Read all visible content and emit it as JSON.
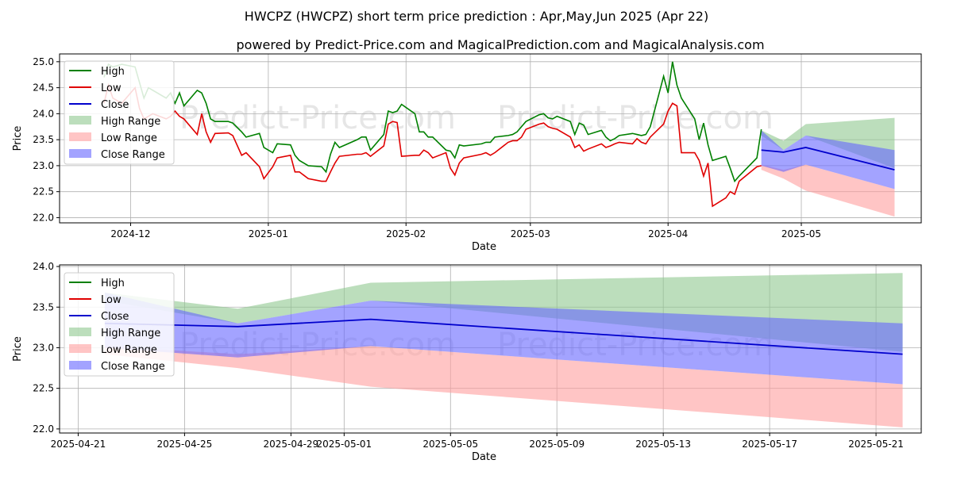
{
  "title": "HWCPZ (HWCPZ) short term price prediction : Apr,May,Jun 2025 (Apr 22)",
  "subtitle": "powered by Predict-Price.com and MagicalPrediction.com and MagicalAnalysis.com",
  "watermark": "Predict-Price.com",
  "colors": {
    "high": "#008000",
    "low": "#e00000",
    "close": "#0000cc",
    "high_range": "#90c890",
    "low_range": "#ff9e9e",
    "close_range": "#6666ff",
    "grid": "#b0b0b0",
    "watermark": "#e6e6e6"
  },
  "legend": {
    "high": "High",
    "low": "Low",
    "close": "Close",
    "high_range": "High Range",
    "low_range": "Low Range",
    "close_range": "Close Range"
  },
  "chart_data": [
    {
      "type": "line",
      "title": "",
      "xlabel": "Date",
      "ylabel": "Price",
      "ylim": [
        21.9,
        25.15
      ],
      "xlim": [
        "2025-11-15",
        "2025-05-28"
      ],
      "x_ticks": [
        "2024-12",
        "2025-01",
        "2025-02",
        "2025-03",
        "2025-04",
        "2025-05"
      ],
      "y_ticks": [
        "22.0",
        "22.5",
        "23.0",
        "23.5",
        "24.0",
        "24.5",
        "25.0"
      ],
      "grid": true,
      "legend_position": "top-left",
      "history": [
        {
          "date": "2024-11-25",
          "high": 24.7,
          "low": 24.2
        },
        {
          "date": "2024-11-26",
          "high": 24.95,
          "low": 24.55
        },
        {
          "date": "2024-11-27",
          "high": 24.9,
          "low": 24.3
        },
        {
          "date": "2024-11-29",
          "high": 24.95,
          "low": 24.2
        },
        {
          "date": "2024-12-02",
          "high": 24.9,
          "low": 24.5
        },
        {
          "date": "2024-12-03",
          "high": 24.6,
          "low": 24.1
        },
        {
          "date": "2024-12-04",
          "high": 24.3,
          "low": 23.9
        },
        {
          "date": "2024-12-05",
          "high": 24.5,
          "low": 23.95
        },
        {
          "date": "2024-12-06",
          "high": 24.45,
          "low": 24.0
        },
        {
          "date": "2024-12-09",
          "high": 24.3,
          "low": 23.9
        },
        {
          "date": "2024-12-10",
          "high": 24.4,
          "low": 23.95
        },
        {
          "date": "2024-12-11",
          "high": 24.2,
          "low": 24.05
        },
        {
          "date": "2024-12-12",
          "high": 24.4,
          "low": 23.95
        },
        {
          "date": "2024-12-13",
          "high": 24.15,
          "low": 23.9
        },
        {
          "date": "2024-12-16",
          "high": 24.45,
          "low": 23.6
        },
        {
          "date": "2024-12-17",
          "high": 24.4,
          "low": 24.0
        },
        {
          "date": "2024-12-18",
          "high": 24.2,
          "low": 23.65
        },
        {
          "date": "2024-12-19",
          "high": 23.9,
          "low": 23.45
        },
        {
          "date": "2024-12-20",
          "high": 23.85,
          "low": 23.62
        },
        {
          "date": "2024-12-23",
          "high": 23.85,
          "low": 23.63
        },
        {
          "date": "2024-12-24",
          "high": 23.82,
          "low": 23.58
        },
        {
          "date": "2024-12-26",
          "high": 23.65,
          "low": 23.2
        },
        {
          "date": "2024-12-27",
          "high": 23.55,
          "low": 23.25
        },
        {
          "date": "2024-12-30",
          "high": 23.62,
          "low": 22.98
        },
        {
          "date": "2024-12-31",
          "high": 23.35,
          "low": 22.75
        },
        {
          "date": "2025-01-02",
          "high": 23.25,
          "low": 22.98
        },
        {
          "date": "2025-01-03",
          "high": 23.42,
          "low": 23.15
        },
        {
          "date": "2025-01-06",
          "high": 23.4,
          "low": 23.2
        },
        {
          "date": "2025-01-07",
          "high": 23.2,
          "low": 22.88
        },
        {
          "date": "2025-01-08",
          "high": 23.1,
          "low": 22.88
        },
        {
          "date": "2025-01-10",
          "high": 23.0,
          "low": 22.75
        },
        {
          "date": "2025-01-13",
          "high": 22.98,
          "low": 22.7
        },
        {
          "date": "2025-01-14",
          "high": 22.88,
          "low": 22.7
        },
        {
          "date": "2025-01-15",
          "high": 23.22,
          "low": 22.88
        },
        {
          "date": "2025-01-16",
          "high": 23.45,
          "low": 23.05
        },
        {
          "date": "2025-01-17",
          "high": 23.35,
          "low": 23.18
        },
        {
          "date": "2025-01-21",
          "high": 23.5,
          "low": 23.22
        },
        {
          "date": "2025-01-22",
          "high": 23.55,
          "low": 23.22
        },
        {
          "date": "2025-01-23",
          "high": 23.55,
          "low": 23.25
        },
        {
          "date": "2025-01-24",
          "high": 23.3,
          "low": 23.18
        },
        {
          "date": "2025-01-27",
          "high": 23.6,
          "low": 23.38
        },
        {
          "date": "2025-01-28",
          "high": 24.05,
          "low": 23.8
        },
        {
          "date": "2025-01-29",
          "high": 24.02,
          "low": 23.85
        },
        {
          "date": "2025-01-30",
          "high": 24.05,
          "low": 23.83
        },
        {
          "date": "2025-01-31",
          "high": 24.18,
          "low": 23.18
        },
        {
          "date": "2025-02-03",
          "high": 24.0,
          "low": 23.2
        },
        {
          "date": "2025-02-04",
          "high": 23.65,
          "low": 23.2
        },
        {
          "date": "2025-02-05",
          "high": 23.65,
          "low": 23.3
        },
        {
          "date": "2025-02-06",
          "high": 23.55,
          "low": 23.25
        },
        {
          "date": "2025-02-07",
          "high": 23.55,
          "low": 23.15
        },
        {
          "date": "2025-02-10",
          "high": 23.3,
          "low": 23.25
        },
        {
          "date": "2025-02-11",
          "high": 23.28,
          "low": 22.95
        },
        {
          "date": "2025-02-12",
          "high": 23.15,
          "low": 22.82
        },
        {
          "date": "2025-02-13",
          "high": 23.4,
          "low": 23.05
        },
        {
          "date": "2025-02-14",
          "high": 23.38,
          "low": 23.15
        },
        {
          "date": "2025-02-18",
          "high": 23.42,
          "low": 23.22
        },
        {
          "date": "2025-02-19",
          "high": 23.45,
          "low": 23.25
        },
        {
          "date": "2025-02-20",
          "high": 23.45,
          "low": 23.2
        },
        {
          "date": "2025-02-21",
          "high": 23.55,
          "low": 23.25
        },
        {
          "date": "2025-02-24",
          "high": 23.58,
          "low": 23.45
        },
        {
          "date": "2025-02-25",
          "high": 23.6,
          "low": 23.48
        },
        {
          "date": "2025-02-26",
          "high": 23.65,
          "low": 23.48
        },
        {
          "date": "2025-02-27",
          "high": 23.75,
          "low": 23.55
        },
        {
          "date": "2025-02-28",
          "high": 23.85,
          "low": 23.7
        },
        {
          "date": "2025-03-03",
          "high": 23.98,
          "low": 23.8
        },
        {
          "date": "2025-03-04",
          "high": 24.0,
          "low": 23.82
        },
        {
          "date": "2025-03-05",
          "high": 23.92,
          "low": 23.75
        },
        {
          "date": "2025-03-06",
          "high": 23.9,
          "low": 23.72
        },
        {
          "date": "2025-03-07",
          "high": 23.95,
          "low": 23.7
        },
        {
          "date": "2025-03-10",
          "high": 23.85,
          "low": 23.55
        },
        {
          "date": "2025-03-11",
          "high": 23.6,
          "low": 23.35
        },
        {
          "date": "2025-03-12",
          "high": 23.82,
          "low": 23.4
        },
        {
          "date": "2025-03-13",
          "high": 23.78,
          "low": 23.28
        },
        {
          "date": "2025-03-14",
          "high": 23.6,
          "low": 23.32
        },
        {
          "date": "2025-03-17",
          "high": 23.68,
          "low": 23.42
        },
        {
          "date": "2025-03-18",
          "high": 23.55,
          "low": 23.35
        },
        {
          "date": "2025-03-19",
          "high": 23.48,
          "low": 23.38
        },
        {
          "date": "2025-03-20",
          "high": 23.52,
          "low": 23.42
        },
        {
          "date": "2025-03-21",
          "high": 23.58,
          "low": 23.45
        },
        {
          "date": "2025-03-24",
          "high": 23.62,
          "low": 23.42
        },
        {
          "date": "2025-03-25",
          "high": 23.6,
          "low": 23.52
        },
        {
          "date": "2025-03-26",
          "high": 23.58,
          "low": 23.45
        },
        {
          "date": "2025-03-27",
          "high": 23.6,
          "low": 23.42
        },
        {
          "date": "2025-03-28",
          "high": 23.75,
          "low": 23.55
        },
        {
          "date": "2025-03-31",
          "high": 24.72,
          "low": 23.8
        },
        {
          "date": "2025-04-01",
          "high": 24.4,
          "low": 24.05
        },
        {
          "date": "2025-04-02",
          "high": 25.0,
          "low": 24.2
        },
        {
          "date": "2025-04-03",
          "high": 24.55,
          "low": 24.15
        },
        {
          "date": "2025-04-04",
          "high": 24.3,
          "low": 23.25
        },
        {
          "date": "2025-04-07",
          "high": 23.9,
          "low": 23.25
        },
        {
          "date": "2025-04-08",
          "high": 23.5,
          "low": 23.1
        },
        {
          "date": "2025-04-09",
          "high": 23.82,
          "low": 22.8
        },
        {
          "date": "2025-04-10",
          "high": 23.4,
          "low": 23.05
        },
        {
          "date": "2025-04-11",
          "high": 23.1,
          "low": 22.22
        },
        {
          "date": "2025-04-14",
          "high": 23.18,
          "low": 22.38
        },
        {
          "date": "2025-04-15",
          "high": 22.95,
          "low": 22.5
        },
        {
          "date": "2025-04-16",
          "high": 22.7,
          "low": 22.45
        },
        {
          "date": "2025-04-17",
          "high": 22.8,
          "low": 22.7
        },
        {
          "date": "2025-04-21",
          "high": 23.15,
          "low": 22.98
        },
        {
          "date": "2025-04-22",
          "high": 23.7,
          "low": 23.0
        }
      ],
      "forecast": [
        {
          "date": "2025-04-22",
          "close": 23.3,
          "high_lo": 23.58,
          "high_hi": 23.68,
          "low_lo": 22.92,
          "low_hi": 23.02,
          "close_lo": 23.0,
          "close_hi": 23.68
        },
        {
          "date": "2025-04-27",
          "close": 23.26,
          "high_lo": 23.3,
          "high_hi": 23.48,
          "low_lo": 22.75,
          "low_hi": 22.92,
          "close_lo": 22.88,
          "close_hi": 23.3
        },
        {
          "date": "2025-05-02",
          "close": 23.35,
          "high_lo": 23.58,
          "high_hi": 23.8,
          "low_lo": 22.52,
          "low_hi": 23.02,
          "close_lo": 23.02,
          "close_hi": 23.58
        },
        {
          "date": "2025-05-22",
          "close": 22.92,
          "high_lo": 22.95,
          "high_hi": 23.92,
          "low_lo": 22.02,
          "low_hi": 22.55,
          "close_lo": 22.55,
          "close_hi": 23.3
        }
      ]
    },
    {
      "type": "area",
      "title": "",
      "xlabel": "Date",
      "ylabel": "Price",
      "ylim": [
        21.95,
        24.02
      ],
      "xlim": [
        "2025-04-20.3",
        "2025-05-22.7"
      ],
      "x_ticks": [
        "2025-04-21",
        "2025-04-25",
        "2025-04-29",
        "2025-05-01",
        "2025-05-05",
        "2025-05-09",
        "2025-05-13",
        "2025-05-17",
        "2025-05-21"
      ],
      "y_ticks": [
        "22.0",
        "22.5",
        "23.0",
        "23.5",
        "24.0"
      ],
      "grid": true,
      "legend_position": "top-left",
      "history": [
        {
          "date": "2025-04-22",
          "high": 23.7,
          "low": 23.0
        }
      ],
      "forecast": [
        {
          "date": "2025-04-22",
          "close": 23.3,
          "high_lo": 23.58,
          "high_hi": 23.68,
          "low_lo": 22.92,
          "low_hi": 23.02,
          "close_lo": 23.0,
          "close_hi": 23.68
        },
        {
          "date": "2025-04-27",
          "close": 23.26,
          "high_lo": 23.3,
          "high_hi": 23.48,
          "low_lo": 22.75,
          "low_hi": 22.92,
          "close_lo": 22.88,
          "close_hi": 23.3
        },
        {
          "date": "2025-05-02",
          "close": 23.35,
          "high_lo": 23.58,
          "high_hi": 23.8,
          "low_lo": 22.52,
          "low_hi": 23.02,
          "close_lo": 23.02,
          "close_hi": 23.58
        },
        {
          "date": "2025-05-22",
          "close": 22.92,
          "high_lo": 22.95,
          "high_hi": 23.92,
          "low_lo": 22.02,
          "low_hi": 22.55,
          "close_lo": 22.55,
          "close_hi": 23.3
        }
      ]
    }
  ]
}
